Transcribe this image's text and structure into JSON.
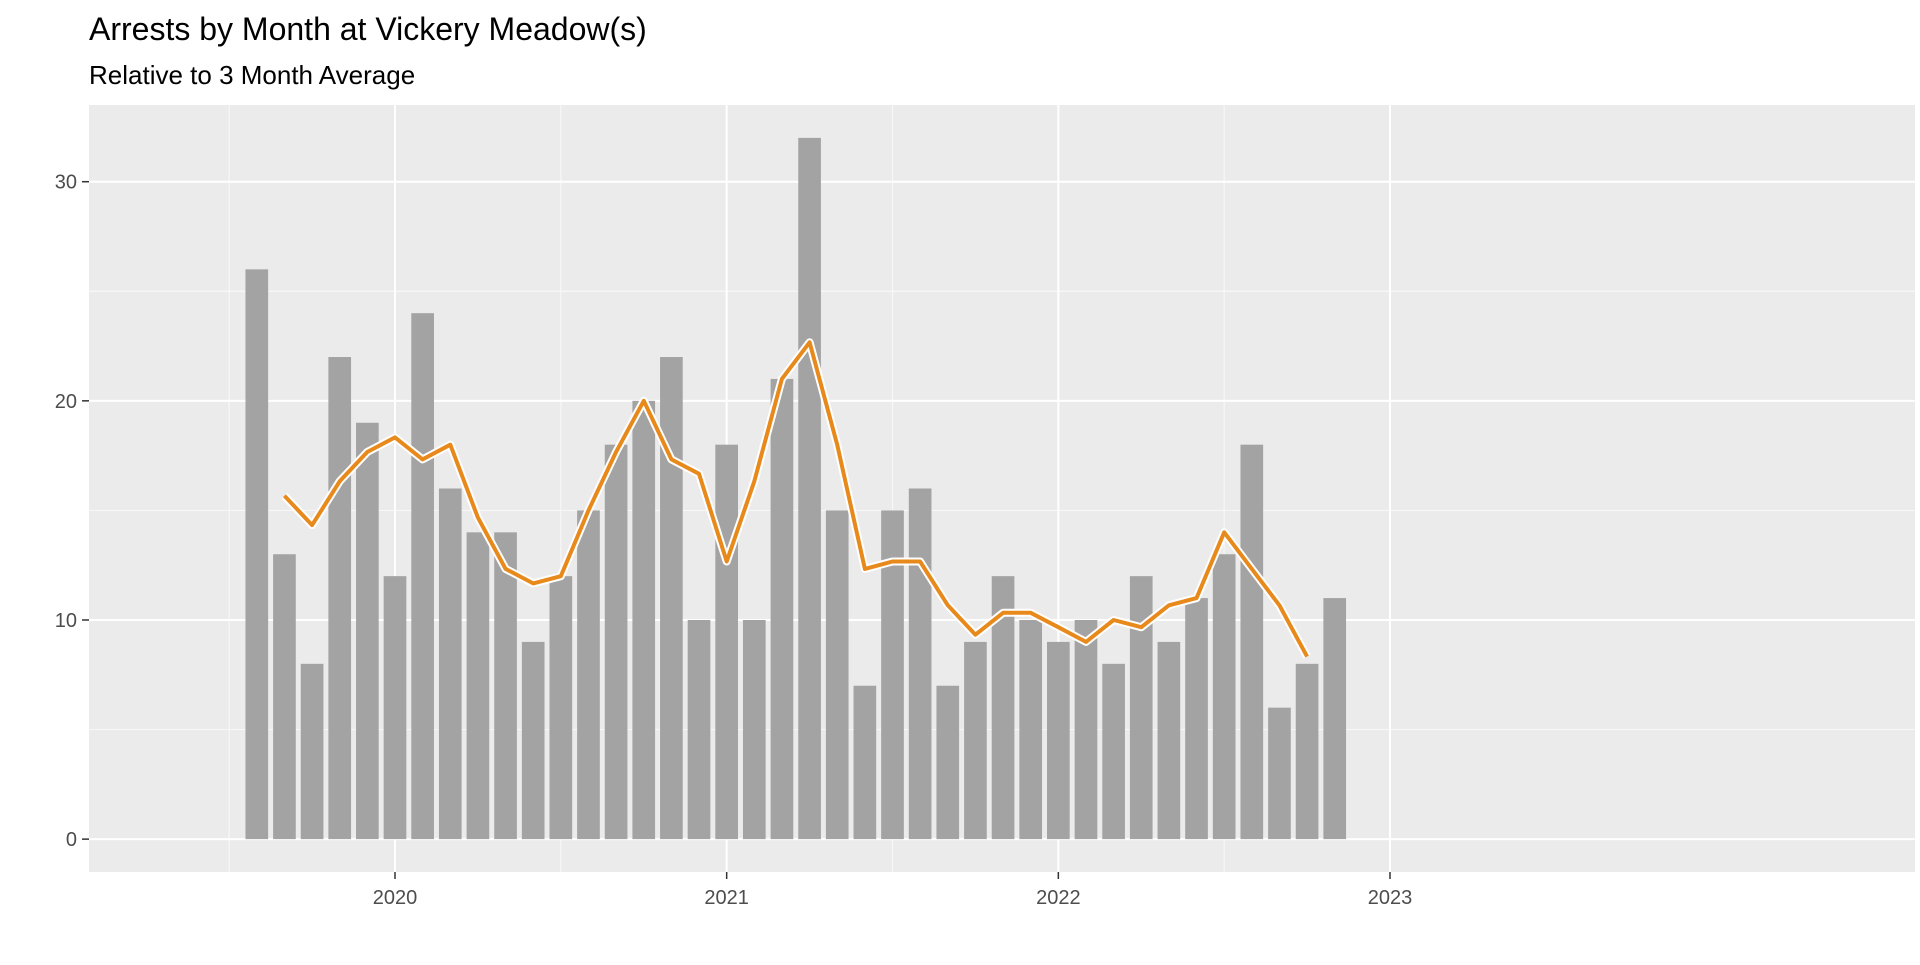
{
  "chart_data": {
    "type": "bar",
    "title": "Arrests by Month at Vickery Meadow(s)",
    "subtitle": "Relative to 3 Month Average",
    "xlabel": "",
    "ylabel": "",
    "x_ticks": [
      "2020",
      "2021",
      "2022",
      "2023"
    ],
    "y_ticks": [
      "0",
      "10",
      "20",
      "30"
    ],
    "ylim": [
      -1.5,
      33.5
    ],
    "grid": true,
    "bar_color": "#a3a3a3",
    "line_color": "#e8891c",
    "panel_color": "#ebebeb",
    "months": [
      "2019-08",
      "2019-09",
      "2019-10",
      "2019-11",
      "2019-12",
      "2020-01",
      "2020-02",
      "2020-03",
      "2020-04",
      "2020-05",
      "2020-06",
      "2020-07",
      "2020-08",
      "2020-09",
      "2020-10",
      "2020-11",
      "2020-12",
      "2021-01",
      "2021-02",
      "2021-03",
      "2021-04",
      "2021-05",
      "2021-06",
      "2021-07",
      "2021-08",
      "2021-09",
      "2021-10",
      "2021-11",
      "2021-12",
      "2022-01",
      "2022-02",
      "2022-03",
      "2022-04",
      "2022-05",
      "2022-06",
      "2022-07",
      "2022-08",
      "2022-09",
      "2022-10",
      "2022-11"
    ],
    "series": [
      {
        "values": [
          26,
          13,
          8,
          22,
          19,
          12,
          24,
          16,
          14,
          14,
          9,
          12,
          15,
          18,
          20,
          22,
          10,
          18,
          10,
          21,
          32,
          15,
          7,
          15,
          16,
          7,
          9,
          12,
          10,
          9,
          10,
          8,
          12,
          9,
          11,
          13,
          18,
          6,
          8,
          11
        ]
      },
      {
        "values": [
          null,
          15.67,
          14.33,
          16.33,
          17.67,
          18.33,
          17.33,
          18,
          14.67,
          12.33,
          11.67,
          12,
          15,
          17.67,
          20,
          17.33,
          16.67,
          12.67,
          16.33,
          21,
          22.67,
          18,
          12.33,
          12.67,
          12.67,
          10.67,
          9.33,
          10.33,
          10.33,
          9.67,
          9,
          10,
          9.67,
          10.67,
          11,
          14,
          12.33,
          10.67,
          8.33,
          null
        ]
      }
    ]
  }
}
